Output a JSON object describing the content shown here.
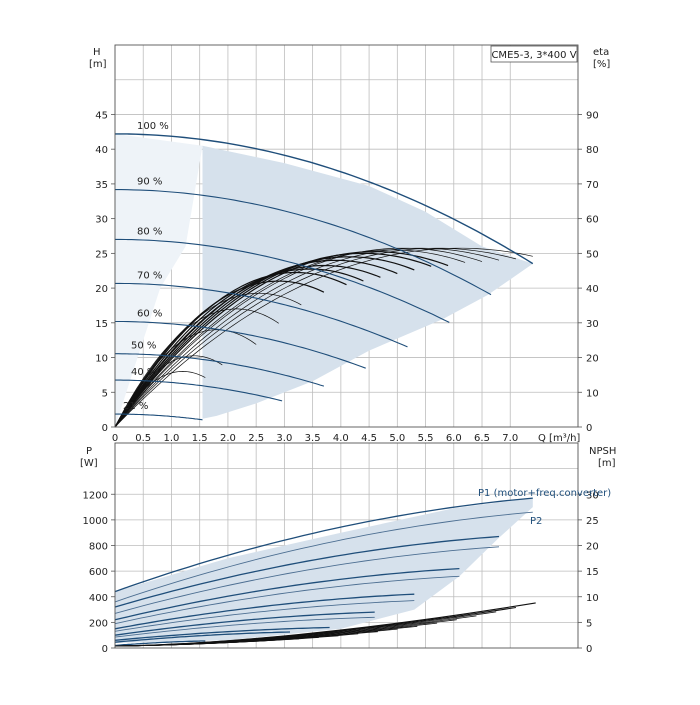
{
  "chart_data": [
    {
      "type": "line",
      "title": "",
      "badge": "CME5-3, 3*400 V",
      "y_axis": {
        "label": "H",
        "unit": "[m]",
        "ticks": [
          0,
          5,
          10,
          15,
          20,
          25,
          30,
          35,
          40,
          45
        ],
        "range": [
          0,
          55
        ]
      },
      "y2_axis": {
        "label": "eta",
        "unit": "[%]",
        "ticks": [
          0,
          10,
          20,
          30,
          40,
          50,
          60,
          70,
          80,
          90
        ],
        "range": [
          0,
          110
        ]
      },
      "x_axis": {
        "label": "Q [m³/h]",
        "ticks": [
          0,
          0.5,
          1.0,
          1.5,
          2.0,
          2.5,
          3.0,
          3.5,
          4.0,
          4.5,
          5.0,
          5.5,
          6.0,
          6.5,
          7.0
        ],
        "tick_labels": [
          "0",
          "0.5",
          "1.0",
          "1.5",
          "2.0",
          "2.5",
          "3.0",
          "3.5",
          "4.0",
          "4.5",
          "5.0",
          "5.5",
          "6.0",
          "6.5",
          "7.0"
        ],
        "range": [
          0,
          8.2
        ]
      },
      "head_curves": [
        {
          "name": "100 %",
          "speed": 1.0,
          "qmax": 7.4
        },
        {
          "name": "90 %",
          "speed": 0.9,
          "qmax": 6.66
        },
        {
          "name": "80 %",
          "speed": 0.8,
          "qmax": 5.92
        },
        {
          "name": "70 %",
          "speed": 0.7,
          "qmax": 5.18
        },
        {
          "name": "60 %",
          "speed": 0.6,
          "qmax": 4.44
        },
        {
          "name": "50 %",
          "speed": 0.5,
          "qmax": 3.7
        },
        {
          "name": "40 %",
          "speed": 0.4,
          "qmax": 2.96
        },
        {
          "name": "21 %",
          "speed": 0.21,
          "qmax": 1.55
        }
      ],
      "head_shutoff_100": 42.2,
      "head_coeff": 0.341,
      "operating_area": {
        "upper": [
          [
            1.55,
            40.5
          ],
          [
            3.0,
            38.0
          ],
          [
            4.5,
            34.7
          ],
          [
            5.5,
            31.0
          ],
          [
            6.5,
            26.0
          ],
          [
            7.4,
            23.5
          ]
        ],
        "lower": [
          [
            7.4,
            23.5
          ],
          [
            6.6,
            19.0
          ],
          [
            5.8,
            15.5
          ],
          [
            4.5,
            11.0
          ],
          [
            3.5,
            6.6
          ],
          [
            2.5,
            3.4
          ],
          [
            1.8,
            1.6
          ],
          [
            1.55,
            1.2
          ]
        ]
      },
      "efficiency_curves": {
        "peak": [
          51.5,
          51.5,
          51.5,
          51.5,
          51.0,
          50.5,
          50.0,
          49.0,
          48.0,
          46.5,
          45.5,
          44.5,
          42.0,
          38.5,
          34.0,
          28.0,
          20.5,
          16.0
        ],
        "qbest": [
          6.1,
          5.7,
          5.4,
          5.1,
          4.9,
          4.6,
          4.4,
          4.15,
          3.9,
          3.7,
          3.45,
          3.2,
          2.9,
          2.55,
          2.15,
          1.8,
          1.4,
          1.2
        ],
        "qend": [
          7.4,
          7.1,
          6.8,
          6.5,
          6.2,
          5.9,
          5.6,
          5.3,
          5.0,
          4.7,
          4.4,
          4.1,
          3.7,
          3.3,
          2.9,
          2.5,
          1.9,
          1.6
        ],
        "qstart_bold_from": 5
      }
    },
    {
      "type": "line",
      "title": "",
      "y_axis": {
        "label": "P",
        "unit": "[W]",
        "ticks": [
          0,
          200,
          400,
          600,
          800,
          1000,
          1200
        ],
        "range": [
          0,
          1600
        ]
      },
      "y2_axis": {
        "label": "NPSH",
        "unit": "[m]",
        "ticks": [
          0,
          5,
          10,
          15,
          20,
          25,
          30
        ],
        "range": [
          0,
          40
        ]
      },
      "x_axis": {
        "ticks": [
          0,
          0.5,
          1.0,
          1.5,
          2.0,
          2.5,
          3.0,
          3.5,
          4.0,
          4.5,
          5.0,
          5.5,
          6.0,
          6.5,
          7.0
        ],
        "range": [
          0,
          8.2
        ]
      },
      "series_labels": {
        "p1": "P1 (motor+freq.converter)",
        "p2": "P2"
      },
      "power_curves": [
        {
          "p0": 440,
          "pend": 1170,
          "qend": 7.4,
          "kind": "p1"
        },
        {
          "p0": 360,
          "pend": 1060,
          "qend": 7.4,
          "kind": "p2"
        },
        {
          "p0": 320,
          "pend": 870,
          "qend": 6.8,
          "kind": "p1"
        },
        {
          "p0": 270,
          "pend": 790,
          "qend": 6.8,
          "kind": "p2"
        },
        {
          "p0": 220,
          "pend": 620,
          "qend": 6.1,
          "kind": "p1"
        },
        {
          "p0": 190,
          "pend": 560,
          "qend": 6.1,
          "kind": "p2"
        },
        {
          "p0": 150,
          "pend": 420,
          "qend": 5.3,
          "kind": "p1"
        },
        {
          "p0": 130,
          "pend": 370,
          "qend": 5.3,
          "kind": "p2"
        },
        {
          "p0": 100,
          "pend": 280,
          "qend": 4.6,
          "kind": "p1"
        },
        {
          "p0": 85,
          "pend": 240,
          "qend": 4.6,
          "kind": "p2"
        },
        {
          "p0": 60,
          "pend": 160,
          "qend": 3.8,
          "kind": "p1"
        },
        {
          "p0": 45,
          "pend": 125,
          "qend": 3.1,
          "kind": "p1"
        },
        {
          "p0": 20,
          "pend": 55,
          "qend": 1.6,
          "kind": "p1"
        }
      ],
      "power_area": {
        "upper": [
          [
            0,
            440
          ],
          [
            2.0,
            700
          ],
          [
            4.0,
            900
          ],
          [
            6.0,
            1090
          ],
          [
            7.4,
            1170
          ]
        ],
        "lower": [
          [
            7.4,
            1100
          ],
          [
            6.8,
            860
          ],
          [
            6.1,
            560
          ],
          [
            5.3,
            300
          ],
          [
            4.0,
            150
          ],
          [
            2.0,
            60
          ],
          [
            0,
            40
          ]
        ]
      },
      "npsh": {
        "qmax": 7.45,
        "top": 8.8,
        "qmax_other": 6.9,
        "top_other": 6.2
      }
    }
  ]
}
